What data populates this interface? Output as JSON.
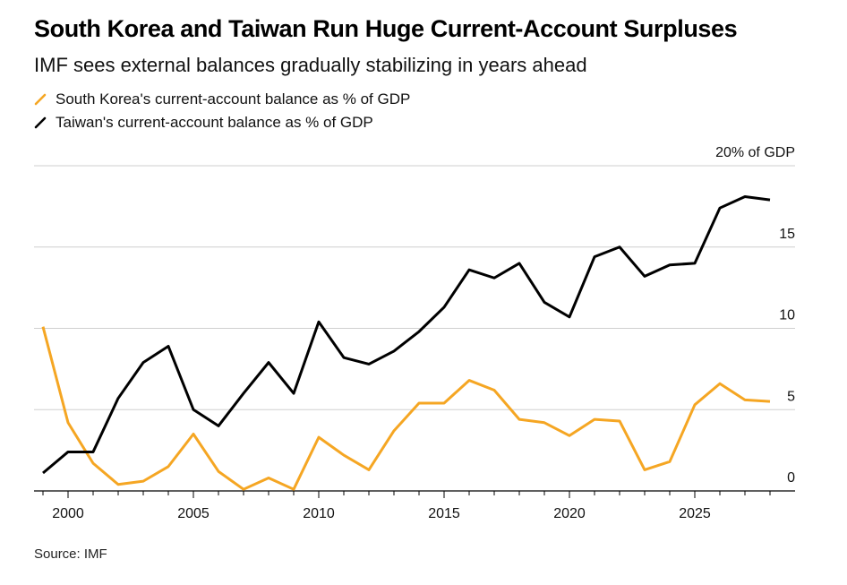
{
  "title": "South Korea and Taiwan Run Huge Current-Account Surpluses",
  "subtitle": "IMF sees external balances gradually stabilizing in years ahead",
  "source": "Source: IMF",
  "chart_data": {
    "type": "line",
    "title": "South Korea and Taiwan Run Huge Current-Account Surpluses",
    "subtitle": "IMF sees external balances gradually stabilizing in years ahead",
    "xlabel": "",
    "ylabel": "",
    "ylim": [
      0,
      20
    ],
    "xlim": [
      1999,
      2028
    ],
    "y_ticks": [
      0,
      5,
      10,
      15,
      20
    ],
    "y_tick_labels": [
      "0",
      "5",
      "10",
      "15",
      "20% of GDP"
    ],
    "x_ticks": [
      2000,
      2005,
      2010,
      2015,
      2020,
      2025
    ],
    "x_tick_labels": [
      "2000",
      "2005",
      "2010",
      "2015",
      "2020",
      "2025"
    ],
    "grid": true,
    "legend_position": "top-left",
    "series": [
      {
        "name": "South Korea's current-account balance as % of GDP",
        "color": "#f5a623",
        "x": [
          1999,
          2000,
          2001,
          2002,
          2003,
          2004,
          2005,
          2006,
          2007,
          2008,
          2009,
          2010,
          2011,
          2012,
          2013,
          2014,
          2015,
          2016,
          2017,
          2018,
          2019,
          2020,
          2021,
          2022,
          2023,
          2024,
          2025,
          2026,
          2027,
          2028
        ],
        "values": [
          10.1,
          4.2,
          1.7,
          0.4,
          0.6,
          1.5,
          3.5,
          1.2,
          0.1,
          0.8,
          0.1,
          3.3,
          2.2,
          1.3,
          3.7,
          5.4,
          5.4,
          6.8,
          6.2,
          4.4,
          4.2,
          3.4,
          4.4,
          4.3,
          1.3,
          1.8,
          5.3,
          6.6,
          5.6,
          5.5
        ]
      },
      {
        "name": "Taiwan's current-account balance as % of GDP",
        "color": "#000000",
        "x": [
          1999,
          2000,
          2001,
          2002,
          2003,
          2004,
          2005,
          2006,
          2007,
          2008,
          2009,
          2010,
          2011,
          2012,
          2013,
          2014,
          2015,
          2016,
          2017,
          2018,
          2019,
          2020,
          2021,
          2022,
          2023,
          2024,
          2025,
          2026,
          2027,
          2028
        ],
        "values": [
          1.1,
          2.4,
          2.4,
          5.7,
          7.9,
          8.9,
          5.0,
          4.0,
          6.0,
          7.9,
          6.0,
          10.4,
          8.2,
          7.8,
          8.6,
          9.8,
          11.3,
          13.6,
          13.1,
          14.0,
          11.6,
          10.7,
          14.4,
          15.0,
          13.2,
          13.9,
          14.0,
          17.4,
          18.1,
          17.9
        ]
      }
    ]
  }
}
